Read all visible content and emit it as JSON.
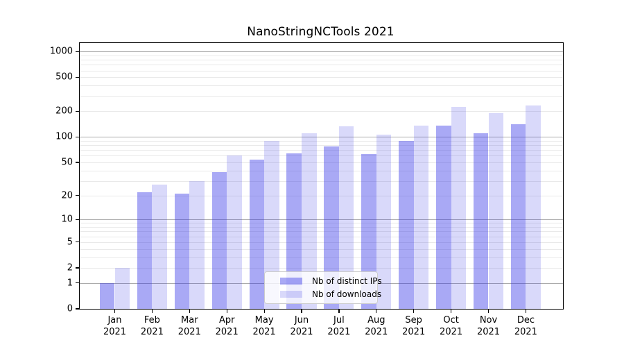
{
  "title": "NanoStringNCTools 2021",
  "legend": {
    "items": [
      {
        "label": "Nb of distinct IPs",
        "color": "rgba(51,51,230,0.42)"
      },
      {
        "label": "Nb of downloads",
        "color": "rgba(51,51,230,0.19)"
      }
    ]
  },
  "chart_data": {
    "type": "bar",
    "title": "NanoStringNCTools 2021",
    "categories": [
      "Jan 2021",
      "Feb 2021",
      "Mar 2021",
      "Apr 2021",
      "May 2021",
      "Jun 2021",
      "Jul 2021",
      "Aug 2021",
      "Sep 2021",
      "Oct 2021",
      "Nov 2021",
      "Dec 2021"
    ],
    "series": [
      {
        "name": "Nb of distinct IPs",
        "values": [
          1,
          22,
          21,
          38,
          54,
          64,
          77,
          63,
          90,
          135,
          111,
          142
        ],
        "color": "rgba(51,51,230,0.42)"
      },
      {
        "name": "Nb of downloads",
        "values": [
          2,
          27,
          30,
          60,
          90,
          111,
          134,
          106,
          137,
          227,
          192,
          233
        ],
        "color": "rgba(51,51,230,0.19)"
      }
    ],
    "yscale": "log1p",
    "yticks": [
      0,
      1,
      2,
      5,
      10,
      20,
      50,
      100,
      200,
      500,
      1000
    ],
    "ylim": [
      0,
      1254
    ],
    "grid": "horizontal-major-and-minor",
    "legend_position": "lower center-right inside plot",
    "xlabel": "",
    "ylabel": ""
  }
}
